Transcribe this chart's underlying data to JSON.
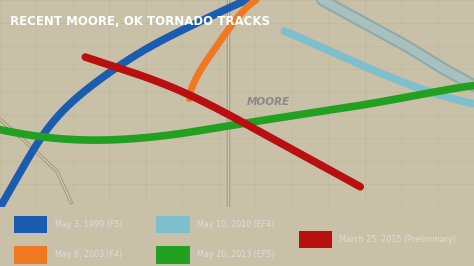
{
  "title": "RECENT MOORE, OK TORNADO TRACKS",
  "title_color": "#ffffff",
  "title_bg_color": "#1e7ab8",
  "bg_color": "#c9c0a8",
  "map_grid_color": "#bbb29a",
  "moore_label": "MOORE",
  "moore_label_color": "#888888",
  "legend_bg": "#353535",
  "legend_text_color": "#dddddd",
  "legend_entries": [
    {
      "color": "#1a5cb0",
      "label": "May 3, 1999 (F5)"
    },
    {
      "color": "#f07822",
      "label": "May 8, 2003 (F4)"
    },
    {
      "color": "#7dbfcc",
      "label": "May 10, 2010 (EF4)"
    },
    {
      "color": "#22a022",
      "label": "May 20, 2013 (EF5)"
    },
    {
      "color": "#b81010",
      "label": "March 25, 2015 (Preliminary)"
    }
  ],
  "tracks": [
    {
      "label": "May 3, 1999 (F5)",
      "color": "#1a5cb0",
      "lw": 5.5,
      "x": [
        0.52,
        0.46,
        0.38,
        0.28,
        0.16,
        0.08,
        0.0
      ],
      "y": [
        1.0,
        0.95,
        0.88,
        0.78,
        0.62,
        0.45,
        0.2
      ]
    },
    {
      "label": "May 8, 2003 (F4)",
      "color": "#f07822",
      "lw": 5.0,
      "x": [
        0.54,
        0.5,
        0.46,
        0.42,
        0.4
      ],
      "y": [
        1.0,
        0.93,
        0.83,
        0.72,
        0.62
      ]
    },
    {
      "label": "May 10, 2010 (EF4)",
      "color": "#7dbfcc",
      "lw": 5.5,
      "x": [
        0.6,
        0.7,
        0.8,
        0.9,
        1.0
      ],
      "y": [
        0.88,
        0.8,
        0.72,
        0.65,
        0.6
      ]
    },
    {
      "label": "May 20, 2013 (EF5)",
      "color": "#22a022",
      "lw": 5.5,
      "x": [
        0.0,
        0.1,
        0.22,
        0.36,
        0.5,
        0.64,
        0.78,
        0.9,
        1.0
      ],
      "y": [
        0.5,
        0.47,
        0.46,
        0.48,
        0.52,
        0.56,
        0.6,
        0.64,
        0.67
      ]
    },
    {
      "label": "March 25, 2015 (Preliminary)",
      "color": "#b81010",
      "lw": 5.5,
      "x": [
        0.18,
        0.28,
        0.38,
        0.48,
        0.58,
        0.68,
        0.76
      ],
      "y": [
        0.78,
        0.72,
        0.65,
        0.56,
        0.46,
        0.36,
        0.28
      ]
    }
  ],
  "roads": [
    {
      "x": [
        0.48,
        0.48
      ],
      "y": [
        0.2,
        1.0
      ],
      "color": "#b0a890",
      "lw": 1.5
    },
    {
      "x": [
        0.0,
        0.12
      ],
      "y": [
        0.58,
        0.2
      ],
      "color": "#b0a890",
      "lw": 1.5
    },
    {
      "x": [
        0.0,
        0.12
      ],
      "y": [
        0.62,
        0.24
      ],
      "color": "#c8c0aa",
      "lw": 0.8
    },
    {
      "x": [
        0.72,
        1.0
      ],
      "y": [
        1.0,
        0.8
      ],
      "color": "#a0a89a",
      "lw": 7
    },
    {
      "x": [
        0.72,
        1.0
      ],
      "y": [
        0.97,
        0.77
      ],
      "color": "#b8c0b4",
      "lw": 4
    }
  ],
  "xlim": [
    0.0,
    1.0
  ],
  "ylim": [
    0.2,
    1.0
  ]
}
